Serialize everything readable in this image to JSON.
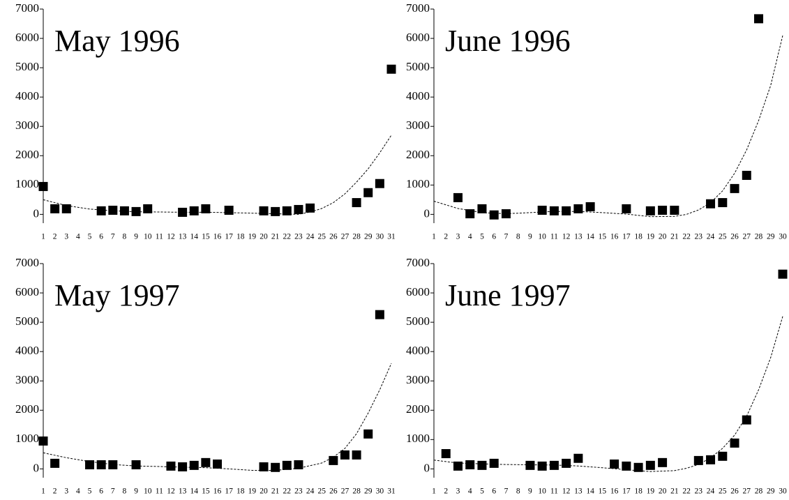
{
  "chart_data": [
    {
      "type": "scatter",
      "title": "May 1996",
      "color": "#000000",
      "x": [
        1,
        2,
        3,
        6,
        7,
        8,
        9,
        10,
        13,
        14,
        15,
        17,
        20,
        21,
        22,
        23,
        24,
        28,
        29,
        30,
        31
      ],
      "values": [
        950,
        190,
        190,
        120,
        140,
        120,
        95,
        190,
        70,
        120,
        190,
        140,
        120,
        95,
        120,
        165,
        215,
        400,
        740,
        1050,
        4950
      ],
      "trend": {
        "x": [
          1,
          3,
          5,
          7,
          9,
          11,
          13,
          15,
          17,
          19,
          21,
          23,
          24,
          25,
          26,
          27,
          28,
          29,
          30,
          31
        ],
        "values": [
          500,
          300,
          180,
          120,
          90,
          80,
          70,
          70,
          60,
          40,
          20,
          0,
          80,
          200,
          400,
          700,
          1100,
          1550,
          2100,
          2700
        ]
      },
      "xlim": [
        1,
        31
      ],
      "xticks": [
        1,
        2,
        3,
        4,
        5,
        6,
        7,
        8,
        9,
        10,
        11,
        12,
        13,
        14,
        15,
        16,
        17,
        18,
        19,
        20,
        21,
        22,
        23,
        24,
        25,
        26,
        27,
        28,
        29,
        30,
        31
      ],
      "ylim": [
        -300,
        7000
      ],
      "yticks": [
        0,
        1000,
        2000,
        3000,
        4000,
        5000,
        6000,
        7000
      ]
    },
    {
      "type": "scatter",
      "title": "June 1996",
      "color": "#000000",
      "x": [
        3,
        4,
        5,
        6,
        7,
        10,
        11,
        12,
        13,
        14,
        17,
        19,
        20,
        21,
        24,
        25,
        26,
        27,
        28
      ],
      "values": [
        570,
        20,
        190,
        -20,
        20,
        140,
        120,
        120,
        190,
        260,
        190,
        120,
        140,
        140,
        360,
        400,
        880,
        1330,
        6670
      ],
      "trend": {
        "x": [
          1,
          3,
          5,
          7,
          9,
          11,
          13,
          15,
          17,
          19,
          21,
          22,
          23,
          24,
          25,
          26,
          27,
          28,
          29,
          30
        ],
        "values": [
          450,
          200,
          60,
          20,
          60,
          100,
          100,
          60,
          10,
          -80,
          -70,
          0,
          150,
          400,
          800,
          1400,
          2200,
          3200,
          4400,
          6100
        ]
      },
      "xlim": [
        1,
        30
      ],
      "xticks": [
        1,
        2,
        3,
        4,
        5,
        6,
        7,
        8,
        9,
        10,
        11,
        12,
        13,
        14,
        15,
        16,
        17,
        18,
        19,
        20,
        21,
        22,
        23,
        24,
        25,
        26,
        27,
        28,
        29,
        30
      ],
      "ylim": [
        -300,
        7000
      ],
      "yticks": [
        0,
        1000,
        2000,
        3000,
        4000,
        5000,
        6000,
        7000
      ]
    },
    {
      "type": "scatter",
      "title": "May 1997",
      "color": "#000000",
      "x": [
        1,
        2,
        5,
        6,
        7,
        9,
        12,
        13,
        14,
        15,
        16,
        20,
        21,
        22,
        23,
        26,
        27,
        28,
        29,
        30
      ],
      "values": [
        950,
        190,
        140,
        140,
        140,
        140,
        95,
        70,
        120,
        215,
        165,
        70,
        50,
        120,
        140,
        285,
        475,
        475,
        1190,
        5260
      ],
      "trend": {
        "x": [
          1,
          3,
          5,
          7,
          9,
          11,
          13,
          15,
          17,
          19,
          21,
          23,
          25,
          26,
          27,
          28,
          29,
          30,
          31
        ],
        "values": [
          550,
          380,
          250,
          150,
          100,
          80,
          60,
          40,
          0,
          -50,
          -50,
          20,
          200,
          400,
          700,
          1200,
          1900,
          2700,
          3600
        ]
      },
      "xlim": [
        1,
        31
      ],
      "xticks": [
        1,
        2,
        3,
        4,
        5,
        6,
        7,
        8,
        9,
        10,
        11,
        12,
        13,
        14,
        15,
        16,
        17,
        18,
        19,
        20,
        21,
        22,
        23,
        24,
        25,
        26,
        27,
        28,
        29,
        30,
        31
      ],
      "ylim": [
        -300,
        7000
      ],
      "yticks": [
        0,
        1000,
        2000,
        3000,
        4000,
        5000,
        6000,
        7000
      ]
    },
    {
      "type": "scatter",
      "title": "June 1997",
      "color": "#000000",
      "x": [
        2,
        3,
        4,
        5,
        6,
        9,
        10,
        11,
        12,
        13,
        16,
        17,
        18,
        19,
        20,
        23,
        24,
        25,
        26,
        27,
        30
      ],
      "values": [
        520,
        95,
        140,
        120,
        190,
        120,
        95,
        120,
        190,
        360,
        165,
        95,
        50,
        120,
        215,
        285,
        310,
        430,
        880,
        1670,
        6640
      ],
      "trend": {
        "x": [
          1,
          3,
          5,
          7,
          9,
          11,
          13,
          15,
          17,
          19,
          21,
          22,
          23,
          24,
          25,
          26,
          27,
          28,
          29,
          30
        ],
        "values": [
          300,
          200,
          170,
          150,
          140,
          130,
          100,
          40,
          -30,
          -90,
          -60,
          20,
          150,
          380,
          700,
          1150,
          1800,
          2700,
          3800,
          5200
        ]
      },
      "xlim": [
        1,
        30
      ],
      "xticks": [
        1,
        2,
        3,
        4,
        5,
        6,
        7,
        8,
        9,
        10,
        11,
        12,
        13,
        14,
        15,
        16,
        17,
        18,
        19,
        20,
        21,
        22,
        23,
        24,
        25,
        26,
        27,
        28,
        29,
        30
      ],
      "ylim": [
        -300,
        7000
      ],
      "yticks": [
        0,
        1000,
        2000,
        3000,
        4000,
        5000,
        6000,
        7000
      ]
    }
  ]
}
